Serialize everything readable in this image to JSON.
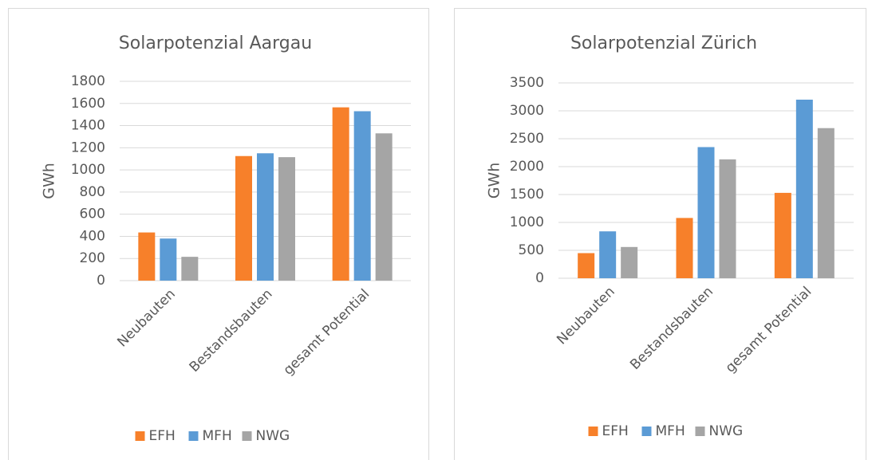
{
  "chart_data": [
    {
      "type": "bar",
      "title": "Solarpotenzial Aargau",
      "y_label": "GWh",
      "categories": [
        "Neubauten",
        "Bestandsbauten",
        "gesamt Potential"
      ],
      "series": [
        {
          "name": "EFH",
          "color": "#f7802a",
          "values": [
            435,
            1125,
            1565
          ]
        },
        {
          "name": "MFH",
          "color": "#5b9bd5",
          "values": [
            380,
            1150,
            1530
          ]
        },
        {
          "name": "NWG",
          "color": "#a5a5a5",
          "values": [
            215,
            1115,
            1330
          ]
        }
      ],
      "ylim": [
        0,
        1800
      ],
      "yticks": [
        0,
        200,
        400,
        600,
        800,
        1000,
        1200,
        1400,
        1600,
        1800
      ],
      "grid": true,
      "legend": "bottom"
    },
    {
      "type": "bar",
      "title": "Solarpotenzial Zürich",
      "y_label": "GWh",
      "categories": [
        "Neubauten",
        "Bestandsbauten",
        "gesamt Potential"
      ],
      "series": [
        {
          "name": "EFH",
          "color": "#f7802a",
          "values": [
            450,
            1080,
            1530
          ]
        },
        {
          "name": "MFH",
          "color": "#5b9bd5",
          "values": [
            840,
            2350,
            3200
          ]
        },
        {
          "name": "NWG",
          "color": "#a5a5a5",
          "values": [
            560,
            2130,
            2690
          ]
        }
      ],
      "ylim": [
        0,
        3500
      ],
      "yticks": [
        0,
        500,
        1000,
        1500,
        2000,
        2500,
        3000,
        3500
      ],
      "grid": true,
      "legend": "bottom"
    }
  ]
}
